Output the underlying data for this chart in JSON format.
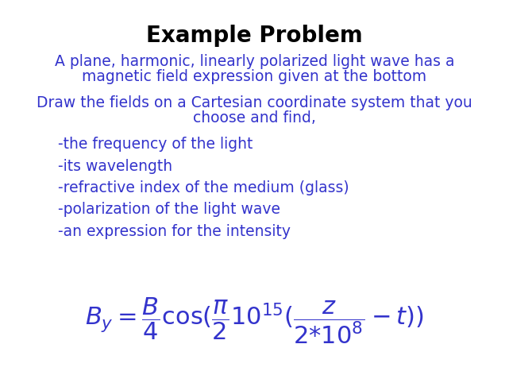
{
  "title": "Example Problem",
  "title_fontsize": 20,
  "title_color": "#000000",
  "title_fontweight": "bold",
  "body_color": "#3333cc",
  "bg_color": "#ffffff",
  "para1_line1": "A plane, harmonic, linearly polarized light wave has a",
  "para1_line2": "magnetic field expression given at the bottom",
  "para2_line1": "Draw the fields on a Cartesian coordinate system that you",
  "para2_line2": "choose and find,",
  "bullet1": "-the frequency of the light",
  "bullet2": "-its wavelength",
  "bullet3": "-refractive index of the medium (glass)",
  "bullet4": "-polarization of the light wave",
  "bullet5": "-an expression for the intensity",
  "text_fontsize": 13.5,
  "formula_fontsize": 22,
  "formula_small_fontsize": 14,
  "formula_sub_fontsize": 12,
  "indent_para": 0.38,
  "indent_bullet": 0.08
}
